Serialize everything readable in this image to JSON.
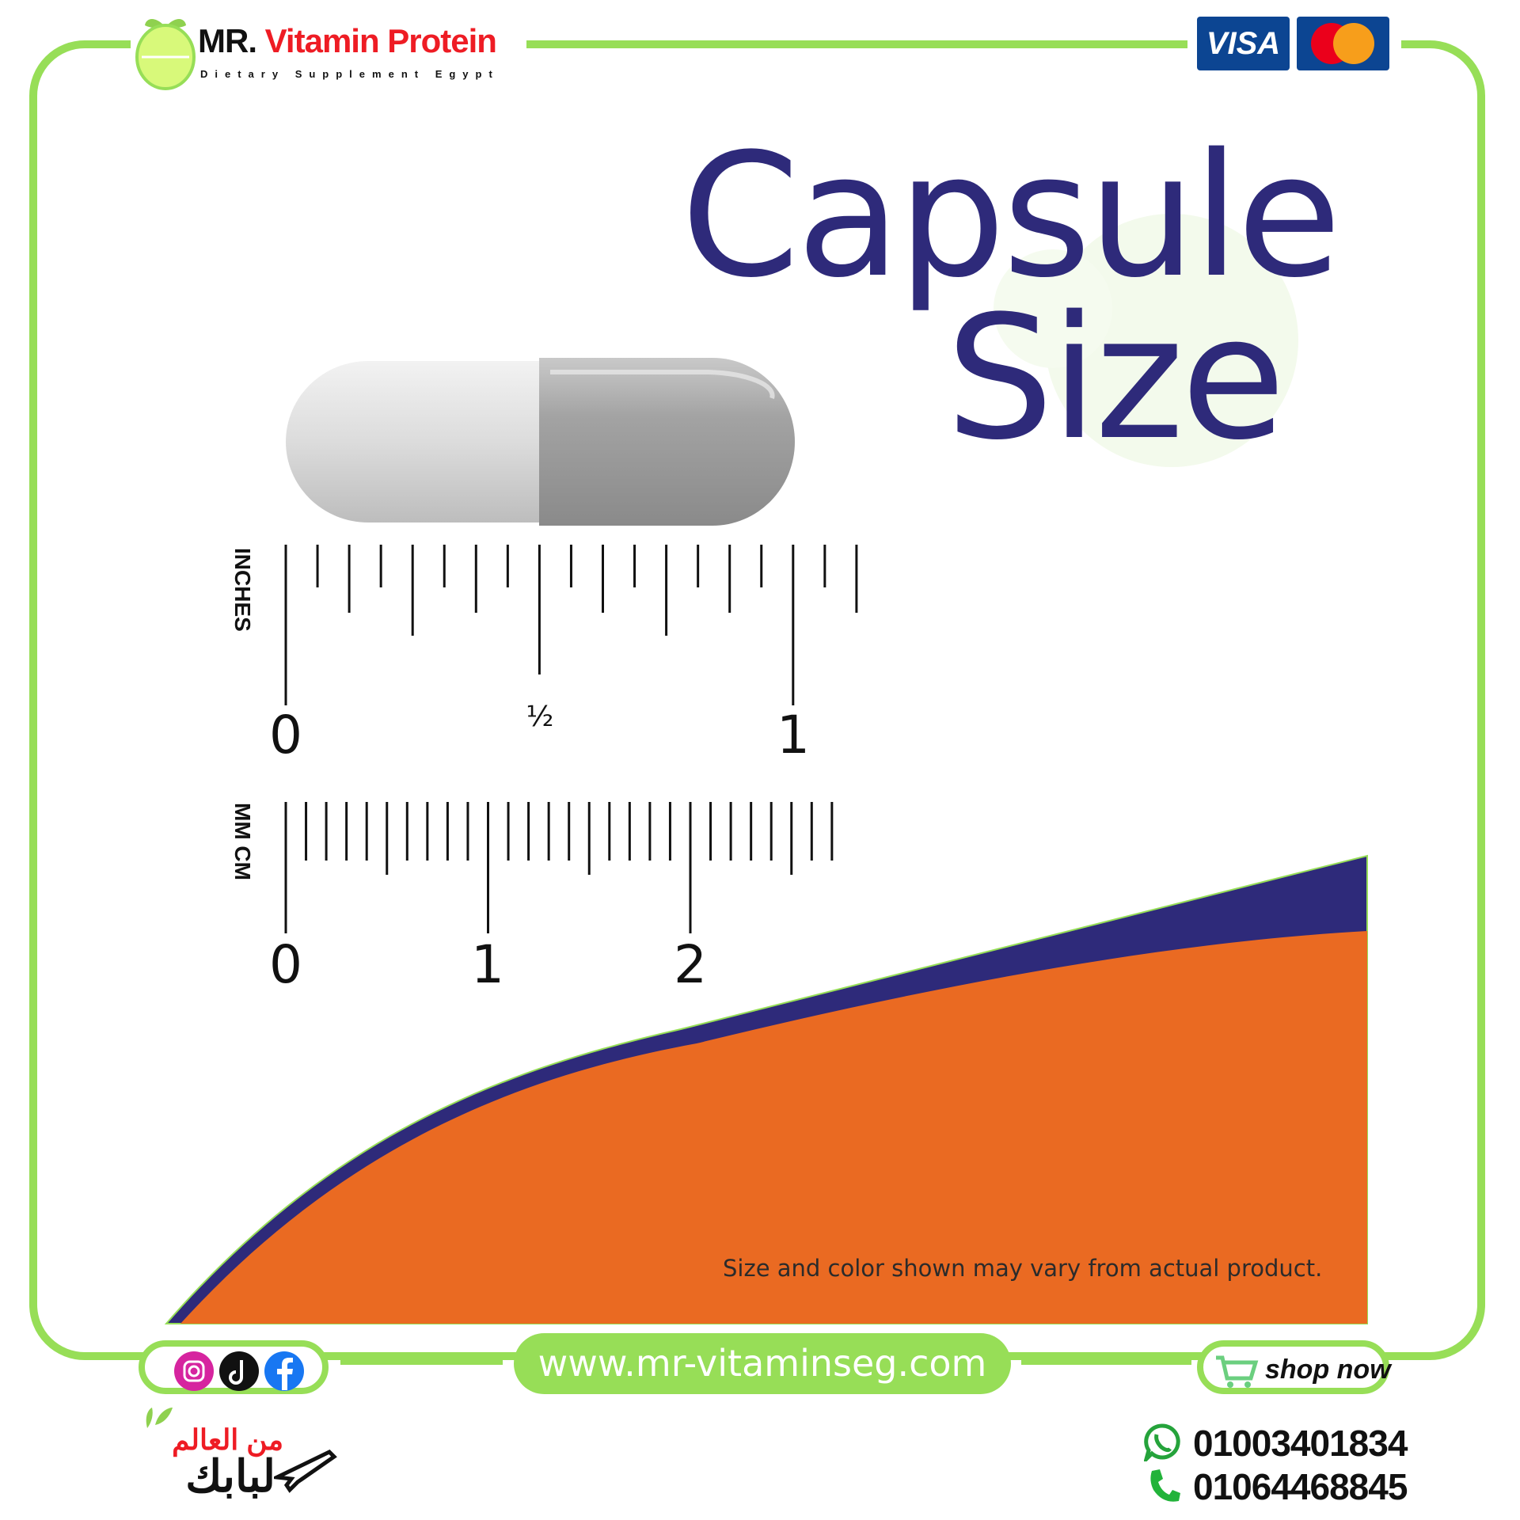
{
  "header": {
    "brand_prefix": "MR.",
    "brand_name": "Vitamin Protein",
    "brand_tagline": "Dietary Supplement Egypt",
    "payment_visa": "VISA"
  },
  "main": {
    "title_line1": "Capsule",
    "title_line2": "Size",
    "inches_label": "INCHES",
    "inches_ticks": [
      "0",
      "½",
      "1"
    ],
    "metric_label": "MM CM",
    "metric_ticks": [
      "0",
      "1",
      "2"
    ],
    "disclaimer": "Size and color shown may vary from actual product."
  },
  "footer": {
    "website": "www.mr-vitaminseg.com",
    "shop_now": "shop now",
    "arabic_line1": "من العالم",
    "arabic_line2": "لبابك",
    "whatsapp_number": "01003401834",
    "phone_number": "01064468845"
  },
  "colors": {
    "frame_green": "#97de57",
    "title_navy": "#2e2a7a",
    "orange": "#ea6a22",
    "brand_red": "#ee1c24"
  }
}
